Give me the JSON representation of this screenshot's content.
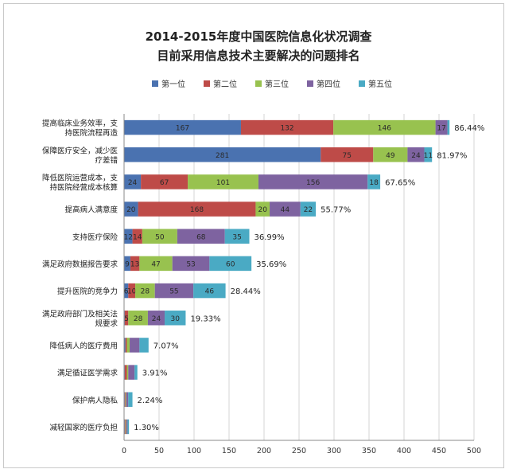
{
  "chart_data": {
    "type": "bar",
    "orientation": "horizontal",
    "stacked": true,
    "title": "2014-2015年度中国医院信息化状况调查",
    "subtitle": "目前采用信息技术主要解决的问题排名",
    "xlabel": "",
    "ylabel": "",
    "xlim": [
      0,
      500
    ],
    "xticks": [
      0,
      50,
      100,
      150,
      200,
      250,
      300,
      350,
      400,
      450,
      500
    ],
    "grid": true,
    "legend_position": "top",
    "categories": [
      "提高临床业务效率，支持医院流程再造",
      "保障医疗安全，减少医疗差错",
      "降低医院运营成本，支持医院经营成本核算",
      "提高病人满意度",
      "支持医疗保险",
      "满足政府数据报告要求",
      "提升医院的竞争力",
      "满足政府部门及相关法规要求",
      "降低病人的医疗费用",
      "满足循证医学需求",
      "保护病人隐私",
      "减轻国家的医疗负担"
    ],
    "series": [
      {
        "name": "第一位",
        "color": "#4a72b0",
        "values": [
          167,
          281,
          24,
          20,
          12,
          9,
          6,
          1,
          2,
          1,
          1,
          1
        ],
        "labels": [
          "167",
          "281",
          "24",
          "20",
          "12",
          "9",
          "6",
          "",
          "",
          "",
          "",
          ""
        ]
      },
      {
        "name": "第二位",
        "color": "#be4b48",
        "values": [
          132,
          75,
          67,
          168,
          14,
          13,
          10,
          5,
          2,
          3,
          1,
          1
        ],
        "labels": [
          "132",
          "75",
          "67",
          "168",
          "14",
          "13",
          "10",
          "5",
          "",
          "",
          "",
          ""
        ]
      },
      {
        "name": "第三位",
        "color": "#98c24f",
        "values": [
          146,
          49,
          101,
          20,
          50,
          47,
          28,
          28,
          4,
          2,
          1,
          1
        ],
        "labels": [
          "146",
          "49",
          "101",
          "20",
          "50",
          "47",
          "28",
          "28",
          "",
          "",
          "",
          ""
        ]
      },
      {
        "name": "第四位",
        "color": "#7e63a0",
        "values": [
          17,
          24,
          156,
          44,
          68,
          53,
          55,
          24,
          14,
          9,
          3,
          2
        ],
        "labels": [
          "17",
          "24",
          "156",
          "44",
          "68",
          "53",
          "55",
          "24",
          "",
          "",
          "",
          ""
        ]
      },
      {
        "name": "第五位",
        "color": "#4aaac4",
        "values": [
          3,
          11,
          18,
          22,
          35,
          60,
          46,
          30,
          13,
          4,
          6,
          2
        ],
        "labels": [
          "",
          "11",
          "18",
          "22",
          "35",
          "60",
          "46",
          "30",
          "",
          "",
          "",
          ""
        ]
      }
    ],
    "percentages": [
      "86.44%",
      "81.97%",
      "67.65%",
      "55.77%",
      "36.99%",
      "35.69%",
      "28.44%",
      "19.33%",
      "7.07%",
      "3.91%",
      "2.24%",
      "1.30%"
    ]
  }
}
